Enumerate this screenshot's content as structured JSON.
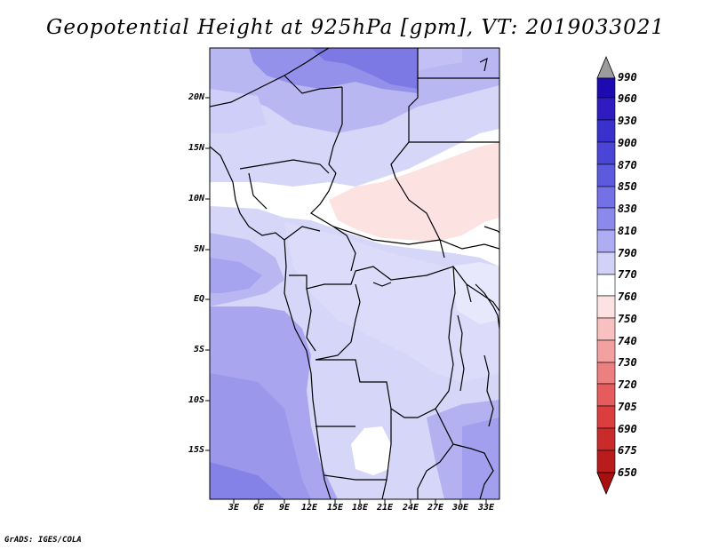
{
  "title": "Geopotential Height at 925hPa [gpm], VT: 2019033021",
  "footer": "GrADS: IGES/COLA",
  "map": {
    "lat_labels": [
      "20N",
      "15N",
      "10N",
      "5N",
      "EQ",
      "5S",
      "10S",
      "15S"
    ],
    "lon_labels": [
      "3E",
      "6E",
      "9E",
      "12E",
      "15E",
      "18E",
      "21E",
      "24E",
      "27E",
      "30E",
      "33E"
    ]
  },
  "colorbar": {
    "labels": [
      "990",
      "960",
      "930",
      "900",
      "870",
      "850",
      "830",
      "810",
      "790",
      "770",
      "760",
      "750",
      "740",
      "730",
      "720",
      "705",
      "690",
      "675",
      "650"
    ],
    "colors": [
      "#9c9c9c",
      "#1c0bb0",
      "#2e1cc0",
      "#3a30cc",
      "#4a45d6",
      "#5d5ade",
      "#7470e6",
      "#8c89ec",
      "#aeacf2",
      "#d2d1f8",
      "#ffffff",
      "#fde2e2",
      "#f8c0c0",
      "#f2a0a0",
      "#ec7f7f",
      "#e65c5c",
      "#da3e3e",
      "#c92a2a",
      "#b81c1c",
      "#a80f0f"
    ]
  }
}
